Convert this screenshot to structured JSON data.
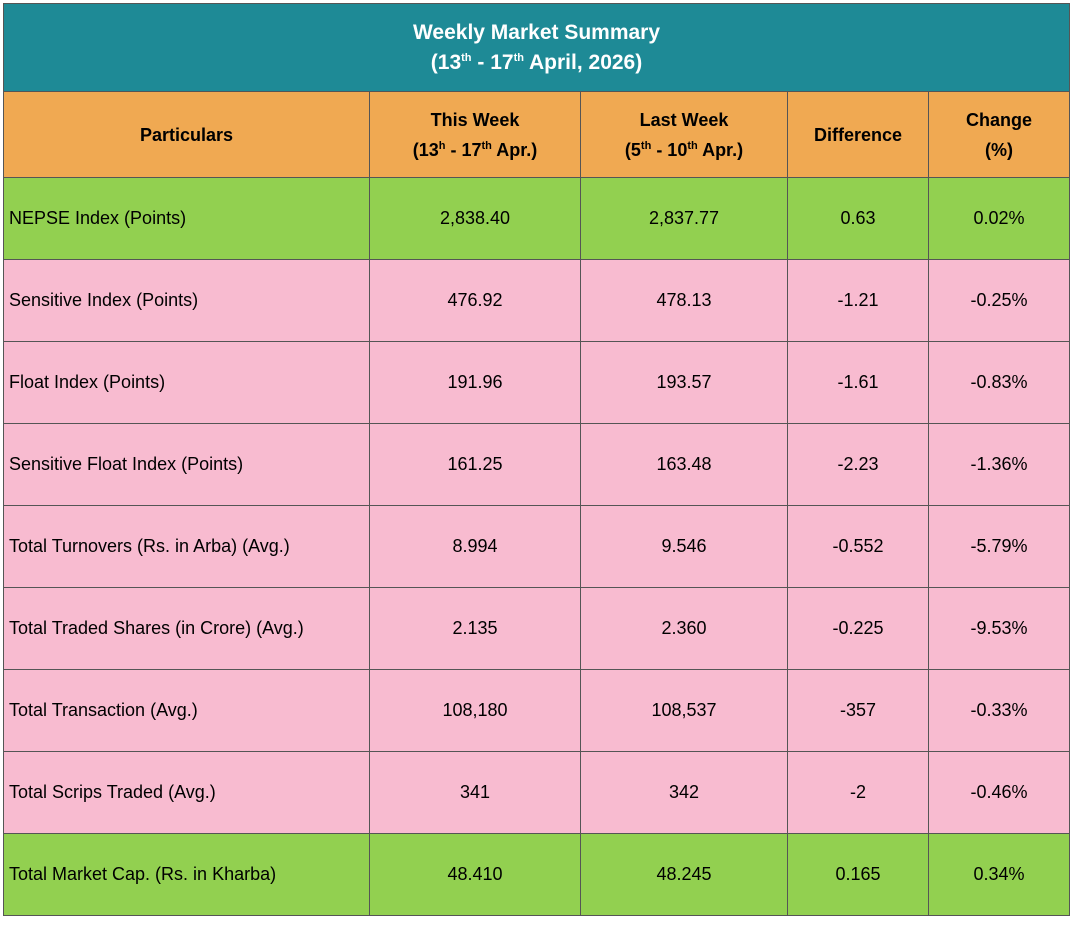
{
  "title": {
    "main": "Weekly Market Summary",
    "range_start": "13",
    "range_start_sup": "th",
    "range_mid": " - 17",
    "range_mid_sup": "th",
    "range_end": " April, 2026)"
  },
  "headers": {
    "particulars": "Particulars",
    "this_week": "This Week",
    "this_week_range_a": "(13",
    "this_week_range_a_sup": "h",
    "this_week_range_b": " - 17",
    "this_week_range_b_sup": "th",
    "this_week_range_c": " Apr.)",
    "last_week": "Last Week",
    "last_week_range_a": "(5",
    "last_week_range_a_sup": "th",
    "last_week_range_b": " - 10",
    "last_week_range_b_sup": "th",
    "last_week_range_c": " Apr.)",
    "difference": "Difference",
    "change": "Change",
    "change_unit": "(%)"
  },
  "rows": [
    {
      "label": "NEPSE Index (Points)",
      "this_week": "2,838.40",
      "last_week": "2,837.77",
      "difference": "0.63",
      "change": "0.02%"
    },
    {
      "label": "Sensitive Index (Points)",
      "this_week": "476.92",
      "last_week": "478.13",
      "difference": "-1.21",
      "change": "-0.25%"
    },
    {
      "label": "Float Index (Points)",
      "this_week": "191.96",
      "last_week": "193.57",
      "difference": "-1.61",
      "change": "-0.83%"
    },
    {
      "label": "Sensitive Float Index (Points)",
      "this_week": "161.25",
      "last_week": "163.48",
      "difference": "-2.23",
      "change": "-1.36%"
    },
    {
      "label": "Total Turnovers (Rs. in Arba) (Avg.)",
      "this_week": "8.994",
      "last_week": "9.546",
      "difference": "-0.552",
      "change": "-5.79%"
    },
    {
      "label": "Total Traded Shares (in Crore) (Avg.)",
      "this_week": "2.135",
      "last_week": "2.360",
      "difference": "-0.225",
      "change": "-9.53%"
    },
    {
      "label": "Total Transaction (Avg.)",
      "this_week": "108,180",
      "last_week": "108,537",
      "difference": "-357",
      "change": "-0.33%"
    },
    {
      "label": "Total Scrips Traded (Avg.)",
      "this_week": "341",
      "last_week": "342",
      "difference": "-2",
      "change": "-0.46%"
    },
    {
      "label": "Total Market Cap. (Rs. in Kharba)",
      "this_week": "48.410",
      "last_week": "48.245",
      "difference": "0.165",
      "change": "0.34%"
    }
  ],
  "colors": {
    "title_bg": "#1e8a96",
    "header_bg": "#f0a952",
    "green_row": "#92d050",
    "pink_row": "#f8bbd0"
  }
}
